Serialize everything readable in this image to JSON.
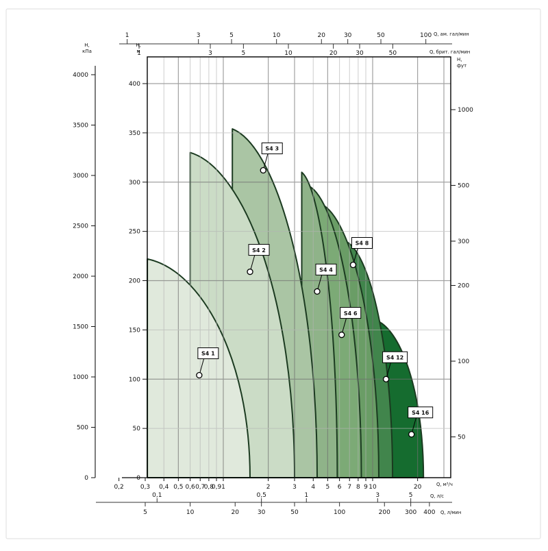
{
  "page": {
    "border_color": "#dedede",
    "background": "#ffffff"
  },
  "chart_data": {
    "type": "area",
    "description": "Composite pump family performance envelopes, flow (log scale) vs head",
    "x_axes": [
      {
        "id": "usgpm",
        "label": "Q, ам. гал/мин",
        "factor_to_m3h": 0.2271,
        "ticks": [
          1,
          3,
          5,
          10,
          20,
          30,
          50,
          100
        ]
      },
      {
        "id": "impgpm",
        "label": "Q, брит. гал/мин",
        "factor_to_m3h": 0.27277,
        "ticks": [
          1,
          3,
          5,
          10,
          20,
          30,
          50
        ]
      },
      {
        "id": "m3h",
        "label": "Q, м³/ч",
        "factor_to_m3h": 1,
        "ticks": [
          0.2,
          0.3,
          0.4,
          0.5,
          0.6,
          0.7,
          0.8,
          0.9,
          1,
          2,
          3,
          4,
          5,
          6,
          7,
          8,
          9,
          10,
          20
        ]
      },
      {
        "id": "ls",
        "label": "Q, л/с",
        "factor_to_m3h": 3.6,
        "ticks": [
          0.1,
          0.5,
          1,
          3,
          5
        ]
      },
      {
        "id": "lmin",
        "label": "Q, л/мин",
        "factor_to_m3h": 0.06,
        "ticks": [
          5,
          10,
          20,
          30,
          50,
          100,
          200,
          300,
          400
        ]
      }
    ],
    "y_axes": [
      {
        "id": "m",
        "label": "H, м",
        "ticks": [
          0,
          50,
          100,
          150,
          200,
          250,
          300,
          350,
          400
        ]
      },
      {
        "id": "kpa",
        "label": "H, кПа",
        "ticks": [
          0,
          500,
          1000,
          1500,
          2000,
          2500,
          3000,
          3500,
          4000
        ]
      },
      {
        "id": "ft",
        "label": "H, фут",
        "ticks": [
          50,
          100,
          200,
          300,
          500,
          1000
        ]
      }
    ],
    "grid": {
      "v_minor_m3h": [
        0.4,
        0.6,
        0.7,
        0.8,
        0.9,
        4,
        6,
        7,
        8,
        9
      ],
      "v_major_m3h": [
        0.5,
        1,
        2,
        3,
        5,
        10,
        20,
        30
      ],
      "h_minor_m": [
        50,
        150,
        250,
        350
      ],
      "h_major_m": [
        100,
        200,
        300,
        400
      ]
    },
    "series": [
      {
        "name": "S4 1",
        "color": "#e0e9dc",
        "q_min_m3h": 0.31,
        "q_max_m3h": 1.51,
        "h_max_m": 222,
        "label_q_m3h": 0.69,
        "label_h_m": 104
      },
      {
        "name": "S4 2",
        "color": "#cbdcc6",
        "q_min_m3h": 0.6,
        "q_max_m3h": 3.0,
        "h_max_m": 330,
        "label_q_m3h": 1.51,
        "label_h_m": 209
      },
      {
        "name": "S4 3",
        "color": "#aac5a4",
        "q_min_m3h": 1.15,
        "q_max_m3h": 4.25,
        "h_max_m": 354,
        "label_q_m3h": 1.85,
        "label_h_m": 312
      },
      {
        "name": "S4 4",
        "color": "#8fb389",
        "q_min_m3h": 3.35,
        "q_max_m3h": 5.8,
        "h_max_m": 310,
        "label_q_m3h": 4.25,
        "label_h_m": 189
      },
      {
        "name": "S4 6",
        "color": "#7caa76",
        "q_min_m3h": 3.75,
        "q_max_m3h": 8.4,
        "h_max_m": 296,
        "label_q_m3h": 6.2,
        "label_h_m": 145
      },
      {
        "name": "S4 8",
        "color": "#6a9d66",
        "q_min_m3h": 4.5,
        "q_max_m3h": 11.0,
        "h_max_m": 278,
        "label_q_m3h": 7.4,
        "label_h_m": 216
      },
      {
        "name": "S4 12",
        "color": "#41854c",
        "q_min_m3h": 6.6,
        "q_max_m3h": 13.6,
        "h_max_m": 240,
        "label_q_m3h": 12.3,
        "label_h_m": 100
      },
      {
        "name": "S4 16",
        "color": "#156c2f",
        "q_min_m3h": 10.4,
        "q_max_m3h": 21.9,
        "h_max_m": 160,
        "label_q_m3h": 18.2,
        "label_h_m": 44
      }
    ],
    "outline_color": "#1b3a20",
    "callout": {
      "box_fill": "#ffffff",
      "box_stroke": "#000000"
    }
  }
}
